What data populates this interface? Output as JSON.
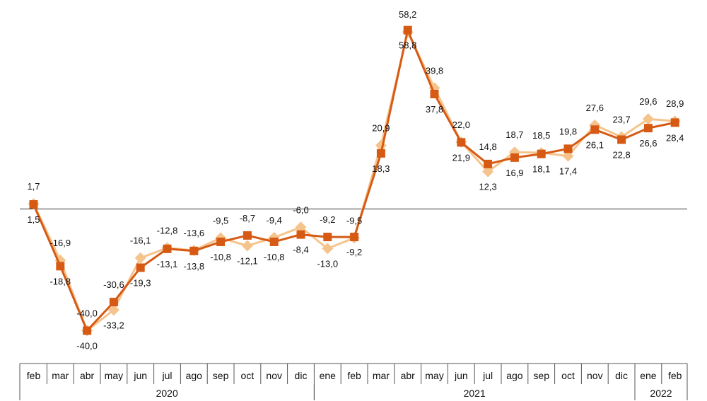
{
  "chart_data": {
    "type": "line",
    "categories": [
      "feb",
      "mar",
      "abr",
      "may",
      "jun",
      "jul",
      "ago",
      "sep",
      "oct",
      "nov",
      "dic",
      "ene",
      "feb",
      "mar",
      "abr",
      "may",
      "jun",
      "jul",
      "ago",
      "sep",
      "oct",
      "nov",
      "dic",
      "ene",
      "feb"
    ],
    "year_groups": [
      {
        "label": "2020",
        "start": 0,
        "end": 10
      },
      {
        "label": "2021",
        "start": 11,
        "end": 22
      },
      {
        "label": "2022",
        "start": 23,
        "end": 24
      }
    ],
    "series": [
      {
        "values": [
          1.5,
          -18.8,
          -40.0,
          -30.6,
          -19.3,
          -13.1,
          -13.8,
          -10.8,
          -8.7,
          -10.8,
          -8.4,
          -9.2,
          -9.2,
          18.3,
          58.8,
          37.8,
          21.9,
          14.8,
          16.9,
          18.1,
          19.8,
          26.1,
          22.8,
          26.6,
          28.4
        ],
        "labels": [
          "1,5",
          "-18,8",
          "-40,0",
          "-30,6",
          "-19,3",
          "-13,1",
          "-13,8",
          "-10,8",
          "-8,7",
          "-10,8",
          "-8,4",
          "-9,2",
          "-9,2",
          "18,3",
          "58,8",
          "37,8",
          "21,9",
          "14,8",
          "16,9",
          "18,1",
          "19,8",
          "26,1",
          "22,8",
          "26,6",
          "28,4"
        ],
        "color": "#d65a14",
        "marker": "square"
      },
      {
        "values": [
          1.7,
          -16.9,
          -40.0,
          -33.2,
          -16.1,
          -12.8,
          -13.6,
          -9.5,
          -12.1,
          -9.4,
          -6.0,
          -13.0,
          -9.5,
          20.9,
          58.2,
          39.8,
          22.0,
          12.3,
          18.7,
          18.5,
          17.4,
          27.6,
          23.7,
          29.6,
          28.9
        ],
        "labels": [
          "1,7",
          "-16,9",
          "-40,0",
          "-33,2",
          "-16,1",
          "-12,8",
          "-13,6",
          "-9,5",
          "-12,1",
          "-9,4",
          "-6,0",
          "-13,0",
          "-9,5",
          "20,9",
          "58,2",
          "39,8",
          "22,0",
          "12,3",
          "18,7",
          "18,5",
          "17,4",
          "27,6",
          "23,7",
          "29,6",
          "28,9"
        ],
        "color": "#f5c48c",
        "marker": "diamond"
      }
    ],
    "ylim": [
      -47,
      64
    ],
    "grid": false,
    "legend": "none"
  }
}
